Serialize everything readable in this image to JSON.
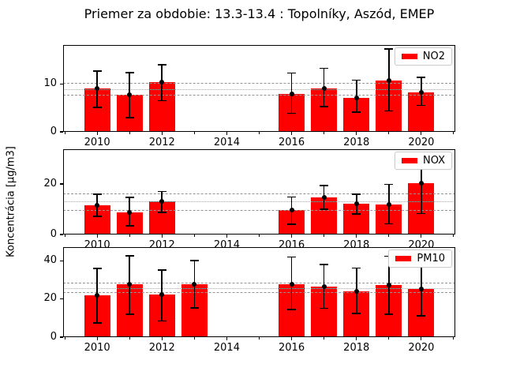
{
  "title": "Priemer za obdobie: 13.3-13.4 : Topolníky, Aszód, EMEP",
  "ylabel": "Koncentrácia [µg/m3]",
  "colors": {
    "bar": "#ff0000",
    "error": "#000000",
    "ref_dashed": "#949494",
    "ref_dotted": "#a8a8a8",
    "spine": "#000000",
    "legend_border": "#cccccc"
  },
  "chart_data": [
    {
      "type": "bar",
      "name": "NO2",
      "legend": "NO2",
      "x": [
        2010,
        2011,
        2012,
        2016,
        2017,
        2018,
        2019,
        2020
      ],
      "values": [
        9.1,
        7.8,
        10.4,
        8.0,
        9.2,
        7.2,
        10.8,
        8.4
      ],
      "err_low": [
        5.2,
        3.0,
        6.6,
        3.9,
        5.3,
        4.2,
        4.4,
        5.6
      ],
      "err_high": [
        12.8,
        12.5,
        14.2,
        12.4,
        13.4,
        10.9,
        17.5,
        11.5
      ],
      "ref_lines": {
        "upper": 10.1,
        "mean": 8.9,
        "lower": 7.7
      },
      "ylim": [
        0,
        18.3
      ],
      "yticks": [
        0,
        10
      ],
      "xlim": [
        2008.95,
        2021.05
      ],
      "xticks": [
        2010,
        2012,
        2014,
        2016,
        2018,
        2020
      ],
      "xticks_minor": [
        2009,
        2011,
        2013,
        2015,
        2017,
        2019,
        2021
      ],
      "bar_width": 0.8,
      "legend_position": "upper right",
      "grid": false
    },
    {
      "type": "bar",
      "name": "NOX",
      "legend": "NOX",
      "x": [
        2010,
        2011,
        2012,
        2016,
        2017,
        2018,
        2019,
        2020
      ],
      "values": [
        11.5,
        8.9,
        13.1,
        9.6,
        14.6,
        12.2,
        11.8,
        20.3
      ],
      "err_low": [
        7.3,
        3.5,
        8.7,
        4.0,
        10.0,
        8.2,
        4.2,
        8.3
      ],
      "err_high": [
        15.9,
        14.7,
        17.1,
        14.9,
        19.5,
        16.0,
        19.9,
        27.3
      ],
      "ref_lines": {
        "upper": 16.1,
        "mean": 12.9,
        "lower": 9.3
      },
      "ylim": [
        0,
        33.8
      ],
      "yticks": [
        0,
        20
      ],
      "xlim": [
        2008.95,
        2021.05
      ],
      "xticks": [
        2010,
        2012,
        2014,
        2016,
        2018,
        2020
      ],
      "xticks_minor": [
        2009,
        2011,
        2013,
        2015,
        2017,
        2019,
        2021
      ],
      "bar_width": 0.8,
      "legend_position": "upper right",
      "grid": false
    },
    {
      "type": "bar",
      "name": "PM10",
      "legend": "PM10",
      "x": [
        2010,
        2011,
        2012,
        2013,
        2016,
        2017,
        2018,
        2019,
        2020
      ],
      "values": [
        21.8,
        27.6,
        22.3,
        27.6,
        27.9,
        26.5,
        24.0,
        27.2,
        25.1
      ],
      "err_low": [
        7.5,
        12.0,
        8.5,
        15.2,
        14.6,
        15.1,
        12.4,
        12.0,
        11.3
      ],
      "err_high": [
        35.9,
        42.7,
        35.1,
        40.1,
        42.0,
        38.2,
        36.2,
        42.4,
        42.5
      ],
      "ref_lines": {
        "upper": 28.0,
        "mean": 25.4,
        "lower": 23.3
      },
      "ylim": [
        0,
        47.2
      ],
      "yticks": [
        0,
        20,
        40
      ],
      "xlim": [
        2008.95,
        2021.05
      ],
      "xticks": [
        2010,
        2012,
        2014,
        2016,
        2018,
        2020
      ],
      "xticks_minor": [
        2009,
        2011,
        2013,
        2015,
        2017,
        2019,
        2021
      ],
      "bar_width": 0.8,
      "legend_position": "upper right",
      "grid": false
    }
  ]
}
